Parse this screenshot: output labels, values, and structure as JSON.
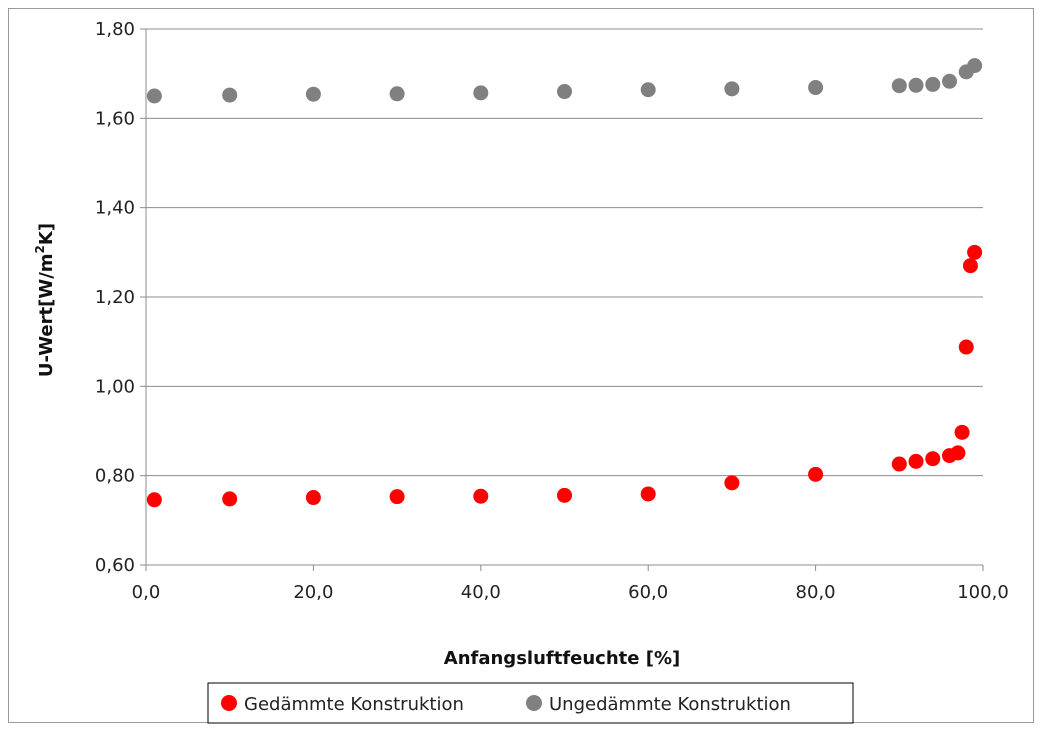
{
  "chart_data": {
    "type": "scatter",
    "xlabel": "Anfangsluftfeuchte [%]",
    "ylabel_main": "U-Wert[W/m",
    "ylabel_sup": "2",
    "ylabel_tail": "K]",
    "xlim": [
      0,
      100
    ],
    "ylim": [
      0.6,
      1.8
    ],
    "x_ticks": [
      0,
      20,
      40,
      60,
      80,
      100
    ],
    "x_tick_labels": [
      "0,0",
      "20,0",
      "40,0",
      "60,0",
      "80,0",
      "100,0"
    ],
    "y_ticks": [
      0.6,
      0.8,
      1.0,
      1.2,
      1.4,
      1.6,
      1.8
    ],
    "y_tick_labels": [
      "0,60",
      "0,80",
      "1,00",
      "1,20",
      "1,40",
      "1,60",
      "1,80"
    ],
    "grid": "horizontal",
    "legend_position": "bottom",
    "series": [
      {
        "name": "Gedämmte Konstruktion",
        "color": "#ff0000",
        "points": [
          [
            1,
            0.746
          ],
          [
            10,
            0.748
          ],
          [
            20,
            0.751
          ],
          [
            30,
            0.753
          ],
          [
            40,
            0.754
          ],
          [
            50,
            0.756
          ],
          [
            60,
            0.759
          ],
          [
            70,
            0.784
          ],
          [
            80,
            0.803
          ],
          [
            90,
            0.826
          ],
          [
            92,
            0.832
          ],
          [
            94,
            0.838
          ],
          [
            96,
            0.845
          ],
          [
            97,
            0.851
          ],
          [
            97.5,
            0.897
          ],
          [
            98,
            1.088
          ],
          [
            98.5,
            1.27
          ],
          [
            99,
            1.3
          ]
        ]
      },
      {
        "name": "Ungedämmte Konstruktion",
        "color": "#808080",
        "points": [
          [
            1,
            1.65
          ],
          [
            10,
            1.652
          ],
          [
            20,
            1.654
          ],
          [
            30,
            1.655
          ],
          [
            40,
            1.657
          ],
          [
            50,
            1.66
          ],
          [
            60,
            1.664
          ],
          [
            70,
            1.666
          ],
          [
            80,
            1.669
          ],
          [
            90,
            1.673
          ],
          [
            92,
            1.674
          ],
          [
            94,
            1.676
          ],
          [
            96,
            1.683
          ],
          [
            98,
            1.704
          ],
          [
            99,
            1.718
          ]
        ]
      }
    ]
  }
}
